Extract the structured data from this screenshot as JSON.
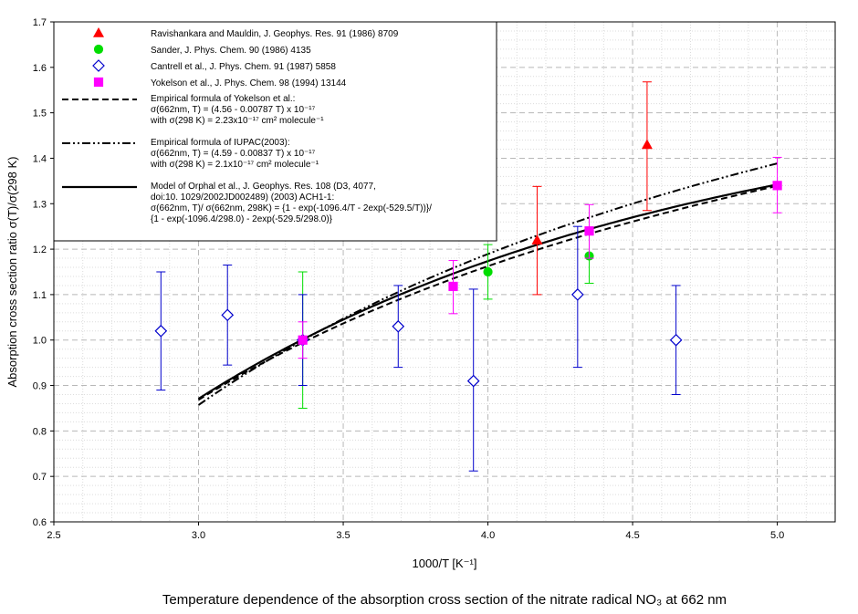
{
  "chart_data": {
    "type": "scatter",
    "xlabel": "1000/T [K⁻¹]",
    "ylabel": "Absorption cross section ratio σ(T)/σ(298 K)",
    "caption": "Temperature dependence of the absorption cross section of the nitrate radical NO₃ at 662 nm",
    "xlim": [
      2.5,
      5.2
    ],
    "ylim": [
      0.6,
      1.7
    ],
    "xticks": [
      "2.5",
      "3.0",
      "3.5",
      "4.0",
      "4.5",
      "5.0"
    ],
    "yticks": [
      "0.6",
      "0.7",
      "0.8",
      "0.9",
      "1.0",
      "1.1",
      "1.2",
      "1.3",
      "1.4",
      "1.5",
      "1.6",
      "1.7"
    ],
    "grid": true,
    "legend_position": "top-left",
    "series": [
      {
        "name": "Ravishankara and Mauldin, J. Geophys. Res. 91 (1986) 8709",
        "marker": "triangle",
        "color": "#ff0000",
        "x": [
          4.17,
          4.55
        ],
        "y": [
          1.22,
          1.43
        ],
        "err_low": [
          1.1,
          1.285
        ],
        "err_high": [
          1.338,
          1.568
        ]
      },
      {
        "name": "Sander, J. Phys. Chem. 90 (1986) 4135",
        "marker": "circle",
        "color": "#00dd00",
        "x": [
          3.36,
          4.0,
          4.35
        ],
        "y": [
          1.0,
          1.15,
          1.185
        ],
        "err_low": [
          0.85,
          1.09,
          1.125
        ],
        "err_high": [
          1.15,
          1.21,
          1.245
        ]
      },
      {
        "name": "Cantrell et al., J. Phys. Chem. 91 (1987) 5858",
        "marker": "diamond-open",
        "color": "#0000cc",
        "x": [
          2.87,
          3.1,
          3.36,
          3.69,
          3.95,
          4.31,
          4.65
        ],
        "y": [
          1.02,
          1.055,
          1.0,
          1.03,
          0.91,
          1.1,
          1.0
        ],
        "err_low": [
          0.89,
          0.945,
          0.9,
          0.94,
          0.712,
          0.94,
          0.88
        ],
        "err_high": [
          1.15,
          1.165,
          1.1,
          1.12,
          1.112,
          1.25,
          1.12
        ]
      },
      {
        "name": "Yokelson et al., J. Phys. Chem. 98 (1994) 13144",
        "marker": "square",
        "color": "#ff00ff",
        "x": [
          3.36,
          3.88,
          4.35,
          5.0
        ],
        "y": [
          1.0,
          1.118,
          1.24,
          1.34
        ],
        "err_low": [
          0.96,
          1.058,
          1.18,
          1.28
        ],
        "err_high": [
          1.04,
          1.175,
          1.298,
          1.402
        ]
      }
    ],
    "curves": [
      {
        "name": "Empirical formula of Yokelson et al.",
        "style": "dashed",
        "formula": "yokelson",
        "legend_lines": [
          "Empirical formula of Yokelson et al.:",
          "σ(662nm, T) = (4.56 - 0.00787 T) x 10⁻¹⁷",
          "with σ(298 K) = 2.23x10⁻¹⁷ cm² molecule⁻¹"
        ]
      },
      {
        "name": "Empirical formula of IUPAC(2003)",
        "style": "dashdotdot",
        "formula": "iupac",
        "legend_lines": [
          "Empirical formula of IUPAC(2003):",
          "σ(662nm, T) = (4.59 - 0.00837 T) x 10⁻¹⁷",
          "with σ(298 K) = 2.1x10⁻¹⁷ cm² molecule⁻¹"
        ]
      },
      {
        "name": "Model of Orphal et al.",
        "style": "solid",
        "formula": "orphal",
        "legend_lines": [
          "Model of Orphal et al., J. Geophys. Res. 108 (D3, 4077,",
          "doi:10. 1029/2002JD002489) (2003) ACH1-1:",
          "σ(662nm, T)/ σ(662nm, 298K) = {1 - exp(-1096.4/T - 2exp(-529.5/T))}/",
          "{1 - exp(-1096.4/298.0) - 2exp(-529.5/298.0)}"
        ]
      }
    ]
  }
}
